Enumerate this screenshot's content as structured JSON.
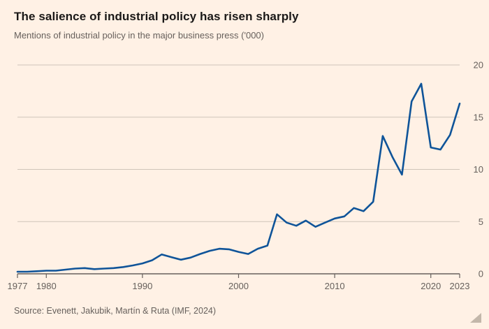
{
  "header": {
    "title": "The salience of industrial policy has risen sharply",
    "subtitle": "Mentions of industrial policy in the major business press ('000)"
  },
  "source": "Source: Evenett, Jakubik, Martín & Ruta (IMF, 2024)",
  "colors": {
    "background": "#FFF1E5",
    "line": "#0f5499",
    "grid": "#cfc4b9",
    "axis": "#66605c",
    "title_text": "#1a1817",
    "muted_text": "#66605c",
    "wedge": "#c3b7aa"
  },
  "chart_data": {
    "type": "line",
    "title": "The salience of industrial policy has risen sharply",
    "subtitle": "Mentions of industrial policy in the major business press ('000)",
    "xlabel": "",
    "ylabel": "Mentions ('000)",
    "xlim": [
      1977,
      2023
    ],
    "ylim": [
      0,
      20
    ],
    "grid": true,
    "legend": false,
    "y_axis_side": "right",
    "x_ticks": [
      1977,
      1980,
      1990,
      2000,
      2010,
      2020,
      2023
    ],
    "y_ticks": [
      0,
      5,
      10,
      15,
      20
    ],
    "x": [
      1977,
      1978,
      1979,
      1980,
      1981,
      1982,
      1983,
      1984,
      1985,
      1986,
      1987,
      1988,
      1989,
      1990,
      1991,
      1992,
      1993,
      1994,
      1995,
      1996,
      1997,
      1998,
      1999,
      2000,
      2001,
      2002,
      2003,
      2004,
      2005,
      2006,
      2007,
      2008,
      2009,
      2010,
      2011,
      2012,
      2013,
      2014,
      2015,
      2016,
      2017,
      2018,
      2019,
      2020,
      2021,
      2022,
      2023
    ],
    "series": [
      {
        "name": "Mentions of industrial policy ('000)",
        "values": [
          0.2,
          0.2,
          0.25,
          0.3,
          0.3,
          0.4,
          0.5,
          0.55,
          0.45,
          0.5,
          0.55,
          0.65,
          0.8,
          1.0,
          1.3,
          1.85,
          1.6,
          1.35,
          1.55,
          1.9,
          2.2,
          2.4,
          2.35,
          2.1,
          1.9,
          2.4,
          2.7,
          5.7,
          4.9,
          4.6,
          5.1,
          4.5,
          4.9,
          5.3,
          5.5,
          6.3,
          6.0,
          6.9,
          13.2,
          11.2,
          9.5,
          16.5,
          18.2,
          12.1,
          11.9,
          13.3,
          16.3
        ]
      }
    ],
    "line_color": "#0f5499",
    "grid_color": "#cfc4b9",
    "axis_color": "#66605c"
  }
}
